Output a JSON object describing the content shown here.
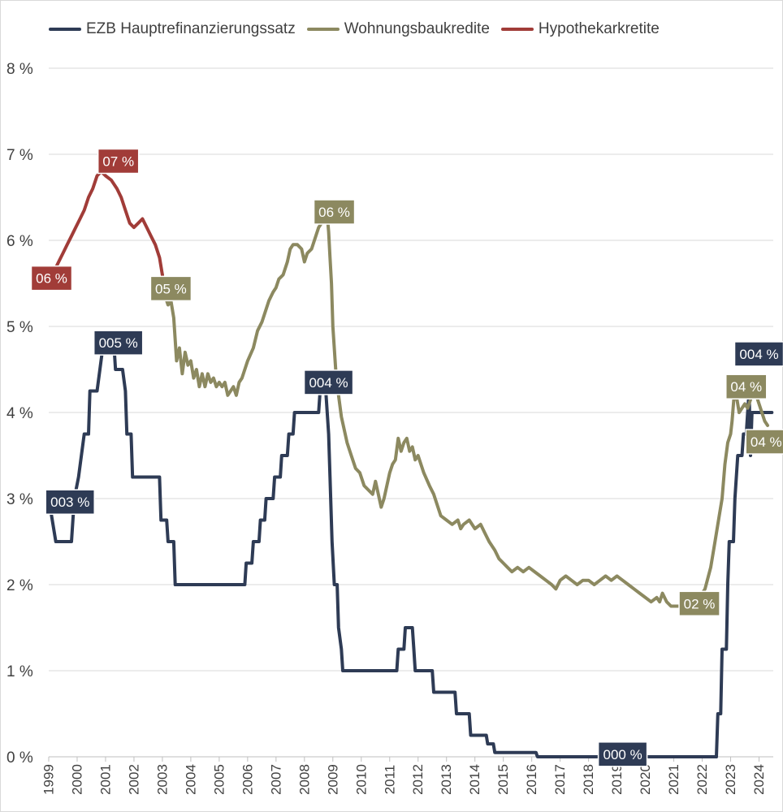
{
  "chart_data": {
    "type": "line",
    "title": "",
    "xlabel": "",
    "ylabel": "",
    "xlim": [
      1999,
      2024.5
    ],
    "ylim": [
      0,
      8
    ],
    "yticks": [
      "0 %",
      "1 %",
      "2 %",
      "3 %",
      "4 %",
      "5 %",
      "6 %",
      "7 %",
      "8 %"
    ],
    "xticks": [
      "1999",
      "2000",
      "2001",
      "2002",
      "2003",
      "2004",
      "2005",
      "2006",
      "2007",
      "2008",
      "2009",
      "2010",
      "2011",
      "2012",
      "2013",
      "2014",
      "2015",
      "2016",
      "2017",
      "2018",
      "2019",
      "2020",
      "2021",
      "2022",
      "2023",
      "2024"
    ],
    "grid": true,
    "legend_position": "top",
    "series": [
      {
        "name": "EZB Hauptrefinanzierungssatz",
        "color": "#2e3b55",
        "points": [
          [
            1999.0,
            3.0
          ],
          [
            1999.25,
            2.5
          ],
          [
            1999.8,
            2.5
          ],
          [
            1999.9,
            3.0
          ],
          [
            2000.05,
            3.25
          ],
          [
            2000.15,
            3.5
          ],
          [
            2000.25,
            3.75
          ],
          [
            2000.4,
            3.75
          ],
          [
            2000.45,
            4.25
          ],
          [
            2000.7,
            4.25
          ],
          [
            2000.8,
            4.5
          ],
          [
            2000.9,
            4.75
          ],
          [
            2001.3,
            4.75
          ],
          [
            2001.35,
            4.5
          ],
          [
            2001.6,
            4.5
          ],
          [
            2001.7,
            4.25
          ],
          [
            2001.75,
            3.75
          ],
          [
            2001.9,
            3.75
          ],
          [
            2001.95,
            3.25
          ],
          [
            2002.9,
            3.25
          ],
          [
            2002.95,
            2.75
          ],
          [
            2003.15,
            2.75
          ],
          [
            2003.2,
            2.5
          ],
          [
            2003.4,
            2.5
          ],
          [
            2003.45,
            2.0
          ],
          [
            2005.9,
            2.0
          ],
          [
            2005.95,
            2.25
          ],
          [
            2006.15,
            2.25
          ],
          [
            2006.2,
            2.5
          ],
          [
            2006.4,
            2.5
          ],
          [
            2006.45,
            2.75
          ],
          [
            2006.6,
            2.75
          ],
          [
            2006.65,
            3.0
          ],
          [
            2006.9,
            3.0
          ],
          [
            2006.95,
            3.25
          ],
          [
            2007.15,
            3.25
          ],
          [
            2007.2,
            3.5
          ],
          [
            2007.4,
            3.5
          ],
          [
            2007.45,
            3.75
          ],
          [
            2007.6,
            3.75
          ],
          [
            2007.65,
            4.0
          ],
          [
            2008.5,
            4.0
          ],
          [
            2008.55,
            4.25
          ],
          [
            2008.75,
            4.25
          ],
          [
            2008.85,
            3.75
          ],
          [
            2008.9,
            3.25
          ],
          [
            2008.97,
            2.5
          ],
          [
            2009.05,
            2.0
          ],
          [
            2009.15,
            2.0
          ],
          [
            2009.2,
            1.5
          ],
          [
            2009.3,
            1.25
          ],
          [
            2009.35,
            1.0
          ],
          [
            2011.25,
            1.0
          ],
          [
            2011.3,
            1.25
          ],
          [
            2011.5,
            1.25
          ],
          [
            2011.55,
            1.5
          ],
          [
            2011.8,
            1.5
          ],
          [
            2011.85,
            1.25
          ],
          [
            2011.9,
            1.0
          ],
          [
            2012.5,
            1.0
          ],
          [
            2012.55,
            0.75
          ],
          [
            2013.3,
            0.75
          ],
          [
            2013.35,
            0.5
          ],
          [
            2013.8,
            0.5
          ],
          [
            2013.85,
            0.25
          ],
          [
            2014.4,
            0.25
          ],
          [
            2014.45,
            0.15
          ],
          [
            2014.65,
            0.15
          ],
          [
            2014.7,
            0.05
          ],
          [
            2016.15,
            0.05
          ],
          [
            2016.2,
            0.0
          ],
          [
            2022.5,
            0.0
          ],
          [
            2022.55,
            0.5
          ],
          [
            2022.65,
            0.5
          ],
          [
            2022.7,
            1.25
          ],
          [
            2022.85,
            1.25
          ],
          [
            2022.9,
            2.0
          ],
          [
            2022.95,
            2.5
          ],
          [
            2023.1,
            2.5
          ],
          [
            2023.15,
            3.0
          ],
          [
            2023.25,
            3.5
          ],
          [
            2023.4,
            3.5
          ],
          [
            2023.45,
            3.75
          ],
          [
            2023.55,
            3.75
          ],
          [
            2023.6,
            4.0
          ],
          [
            2023.65,
            4.25
          ],
          [
            2023.7,
            3.5
          ],
          [
            2023.75,
            4.0
          ],
          [
            2024.45,
            4.0
          ]
        ]
      },
      {
        "name": "Wohnungsbaukredite",
        "color": "#8c8960",
        "points": [
          [
            2003.0,
            5.6
          ],
          [
            2003.1,
            5.35
          ],
          [
            2003.2,
            5.25
          ],
          [
            2003.3,
            5.3
          ],
          [
            2003.4,
            5.1
          ],
          [
            2003.5,
            4.6
          ],
          [
            2003.6,
            4.75
          ],
          [
            2003.7,
            4.45
          ],
          [
            2003.8,
            4.7
          ],
          [
            2003.9,
            4.55
          ],
          [
            2004.0,
            4.6
          ],
          [
            2004.1,
            4.4
          ],
          [
            2004.2,
            4.5
          ],
          [
            2004.3,
            4.3
          ],
          [
            2004.4,
            4.45
          ],
          [
            2004.5,
            4.3
          ],
          [
            2004.6,
            4.45
          ],
          [
            2004.7,
            4.35
          ],
          [
            2004.8,
            4.4
          ],
          [
            2004.9,
            4.3
          ],
          [
            2005.0,
            4.35
          ],
          [
            2005.1,
            4.3
          ],
          [
            2005.2,
            4.35
          ],
          [
            2005.3,
            4.2
          ],
          [
            2005.4,
            4.25
          ],
          [
            2005.5,
            4.3
          ],
          [
            2005.6,
            4.2
          ],
          [
            2005.7,
            4.35
          ],
          [
            2005.8,
            4.4
          ],
          [
            2006.0,
            4.6
          ],
          [
            2006.2,
            4.75
          ],
          [
            2006.35,
            4.95
          ],
          [
            2006.5,
            5.05
          ],
          [
            2006.6,
            5.15
          ],
          [
            2006.75,
            5.3
          ],
          [
            2006.9,
            5.4
          ],
          [
            2007.0,
            5.45
          ],
          [
            2007.1,
            5.55
          ],
          [
            2007.25,
            5.6
          ],
          [
            2007.4,
            5.75
          ],
          [
            2007.5,
            5.9
          ],
          [
            2007.6,
            5.95
          ],
          [
            2007.75,
            5.95
          ],
          [
            2007.9,
            5.9
          ],
          [
            2008.0,
            5.75
          ],
          [
            2008.1,
            5.85
          ],
          [
            2008.25,
            5.9
          ],
          [
            2008.4,
            6.05
          ],
          [
            2008.5,
            6.15
          ],
          [
            2008.6,
            6.2
          ],
          [
            2008.7,
            6.25
          ],
          [
            2008.8,
            6.3
          ],
          [
            2008.85,
            6.1
          ],
          [
            2008.9,
            5.8
          ],
          [
            2008.95,
            5.5
          ],
          [
            2009.0,
            5.0
          ],
          [
            2009.1,
            4.5
          ],
          [
            2009.2,
            4.2
          ],
          [
            2009.3,
            3.95
          ],
          [
            2009.4,
            3.8
          ],
          [
            2009.5,
            3.65
          ],
          [
            2009.65,
            3.5
          ],
          [
            2009.8,
            3.35
          ],
          [
            2009.95,
            3.3
          ],
          [
            2010.1,
            3.15
          ],
          [
            2010.25,
            3.1
          ],
          [
            2010.4,
            3.05
          ],
          [
            2010.5,
            3.2
          ],
          [
            2010.6,
            3.05
          ],
          [
            2010.7,
            2.9
          ],
          [
            2010.8,
            3.0
          ],
          [
            2010.9,
            3.15
          ],
          [
            2011.0,
            3.3
          ],
          [
            2011.1,
            3.4
          ],
          [
            2011.2,
            3.45
          ],
          [
            2011.3,
            3.7
          ],
          [
            2011.4,
            3.55
          ],
          [
            2011.5,
            3.65
          ],
          [
            2011.6,
            3.7
          ],
          [
            2011.7,
            3.55
          ],
          [
            2011.8,
            3.6
          ],
          [
            2011.9,
            3.45
          ],
          [
            2012.0,
            3.5
          ],
          [
            2012.2,
            3.3
          ],
          [
            2012.4,
            3.15
          ],
          [
            2012.55,
            3.05
          ],
          [
            2012.7,
            2.9
          ],
          [
            2012.8,
            2.8
          ],
          [
            2013.0,
            2.75
          ],
          [
            2013.2,
            2.7
          ],
          [
            2013.4,
            2.75
          ],
          [
            2013.5,
            2.65
          ],
          [
            2013.6,
            2.7
          ],
          [
            2013.8,
            2.75
          ],
          [
            2014.0,
            2.65
          ],
          [
            2014.2,
            2.7
          ],
          [
            2014.35,
            2.6
          ],
          [
            2014.5,
            2.5
          ],
          [
            2014.7,
            2.4
          ],
          [
            2014.85,
            2.3
          ],
          [
            2015.0,
            2.25
          ],
          [
            2015.15,
            2.2
          ],
          [
            2015.3,
            2.15
          ],
          [
            2015.5,
            2.2
          ],
          [
            2015.7,
            2.15
          ],
          [
            2015.9,
            2.2
          ],
          [
            2016.1,
            2.15
          ],
          [
            2016.3,
            2.1
          ],
          [
            2016.5,
            2.05
          ],
          [
            2016.7,
            2.0
          ],
          [
            2016.85,
            1.95
          ],
          [
            2017.0,
            2.05
          ],
          [
            2017.2,
            2.1
          ],
          [
            2017.4,
            2.05
          ],
          [
            2017.6,
            2.0
          ],
          [
            2017.8,
            2.05
          ],
          [
            2018.0,
            2.05
          ],
          [
            2018.2,
            2.0
          ],
          [
            2018.4,
            2.05
          ],
          [
            2018.6,
            2.1
          ],
          [
            2018.8,
            2.05
          ],
          [
            2019.0,
            2.1
          ],
          [
            2019.2,
            2.05
          ],
          [
            2019.4,
            2.0
          ],
          [
            2019.6,
            1.95
          ],
          [
            2019.8,
            1.9
          ],
          [
            2020.0,
            1.85
          ],
          [
            2020.2,
            1.8
          ],
          [
            2020.4,
            1.85
          ],
          [
            2020.5,
            1.8
          ],
          [
            2020.6,
            1.9
          ],
          [
            2020.75,
            1.8
          ],
          [
            2020.9,
            1.75
          ],
          [
            2021.2,
            1.75
          ],
          [
            2021.6,
            1.8
          ],
          [
            2021.9,
            1.85
          ],
          [
            2022.1,
            1.95
          ],
          [
            2022.3,
            2.2
          ],
          [
            2022.45,
            2.5
          ],
          [
            2022.6,
            2.8
          ],
          [
            2022.7,
            3.0
          ],
          [
            2022.8,
            3.4
          ],
          [
            2022.9,
            3.65
          ],
          [
            2023.0,
            3.75
          ],
          [
            2023.05,
            3.9
          ],
          [
            2023.1,
            4.1
          ],
          [
            2023.15,
            4.3
          ],
          [
            2023.2,
            4.2
          ],
          [
            2023.3,
            4.0
          ],
          [
            2023.4,
            4.05
          ],
          [
            2023.5,
            4.1
          ],
          [
            2023.6,
            4.05
          ],
          [
            2023.7,
            4.15
          ],
          [
            2023.8,
            4.25
          ],
          [
            2023.9,
            4.2
          ],
          [
            2024.0,
            4.1
          ],
          [
            2024.1,
            4.0
          ],
          [
            2024.2,
            3.9
          ],
          [
            2024.3,
            3.85
          ]
        ]
      },
      {
        "name": "Hypothekarkretite",
        "color": "#a13c38",
        "points": [
          [
            1999.2,
            5.65
          ],
          [
            1999.35,
            5.75
          ],
          [
            1999.5,
            5.85
          ],
          [
            1999.65,
            5.95
          ],
          [
            1999.8,
            6.05
          ],
          [
            1999.95,
            6.15
          ],
          [
            2000.1,
            6.25
          ],
          [
            2000.25,
            6.35
          ],
          [
            2000.4,
            6.5
          ],
          [
            2000.55,
            6.6
          ],
          [
            2000.7,
            6.75
          ],
          [
            2000.85,
            6.8
          ],
          [
            2001.0,
            6.75
          ],
          [
            2001.2,
            6.7
          ],
          [
            2001.4,
            6.6
          ],
          [
            2001.55,
            6.5
          ],
          [
            2001.7,
            6.35
          ],
          [
            2001.85,
            6.2
          ],
          [
            2002.0,
            6.15
          ],
          [
            2002.15,
            6.2
          ],
          [
            2002.3,
            6.25
          ],
          [
            2002.45,
            6.15
          ],
          [
            2002.6,
            6.05
          ],
          [
            2002.75,
            5.95
          ],
          [
            2002.9,
            5.8
          ],
          [
            2003.0,
            5.6
          ]
        ]
      }
    ],
    "data_labels": [
      {
        "series": 2,
        "text": "06 %",
        "x": 1999.1,
        "y": 5.56
      },
      {
        "series": 2,
        "text": "07 %",
        "x": 2001.45,
        "y": 6.92
      },
      {
        "series": 1,
        "text": "05 %",
        "x": 2003.3,
        "y": 5.44
      },
      {
        "series": 1,
        "text": "06 %",
        "x": 2009.05,
        "y": 6.33
      },
      {
        "series": 1,
        "text": "02 %",
        "x": 2021.9,
        "y": 1.78
      },
      {
        "series": 1,
        "text": "04 %",
        "x": 2023.55,
        "y": 4.3
      },
      {
        "series": 1,
        "text": "04 %",
        "x": 2024.25,
        "y": 3.66
      },
      {
        "series": 0,
        "text": "003 %",
        "x": 1999.75,
        "y": 2.96
      },
      {
        "series": 0,
        "text": "005 %",
        "x": 2001.45,
        "y": 4.81
      },
      {
        "series": 0,
        "text": "004 %",
        "x": 2008.85,
        "y": 4.35
      },
      {
        "series": 0,
        "text": "000 %",
        "x": 2019.2,
        "y": 0.03
      },
      {
        "series": 0,
        "text": "004 %",
        "x": 2024.0,
        "y": 4.68
      }
    ]
  }
}
